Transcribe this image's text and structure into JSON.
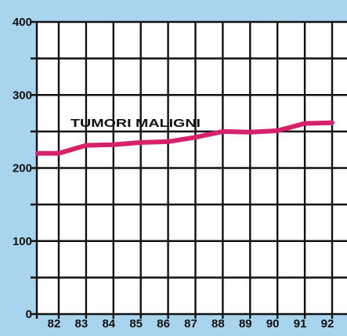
{
  "chart_data": {
    "type": "line",
    "title": "",
    "xlabel": "",
    "ylabel": "",
    "categories": [
      "82",
      "83",
      "84",
      "85",
      "86",
      "87",
      "88",
      "89",
      "90",
      "91",
      "92"
    ],
    "y_ticks": [
      "0",
      "100",
      "200",
      "300",
      "400"
    ],
    "ylim": [
      0,
      400
    ],
    "grid": true,
    "series": [
      {
        "name": "TUMORI MALIGNI",
        "values": [
          220,
          231,
          232,
          235,
          236,
          242,
          250,
          249,
          251,
          261,
          262
        ]
      }
    ]
  },
  "colors": {
    "background": "#a9d4ee",
    "plot_area": "#ffffff",
    "grid": "#111111",
    "series_line": "#d5226a"
  }
}
